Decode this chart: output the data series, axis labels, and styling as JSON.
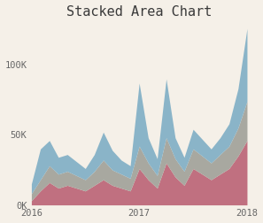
{
  "title": "Stacked Area Chart",
  "background_color": "#f5f0e8",
  "title_fontsize": 11,
  "title_font": "monospace",
  "axis_font": "monospace",
  "tick_fontsize": 7.5,
  "colors": {
    "pink": "#c07080",
    "gray": "#a8a8a0",
    "blue": "#8ab4c8"
  },
  "x_labels": [
    "2016",
    "2017",
    "2018"
  ],
  "y_labels": [
    "0K",
    "50K",
    "100K"
  ],
  "ylim": [
    0,
    130000
  ],
  "months": [
    0,
    1,
    2,
    3,
    4,
    5,
    6,
    7,
    8,
    9,
    10,
    11,
    12,
    13,
    14,
    15,
    16,
    17,
    18,
    19,
    20,
    21,
    22,
    23,
    24
  ],
  "pink_values": [
    3000,
    10000,
    16000,
    12000,
    14000,
    12000,
    10000,
    14000,
    18000,
    14000,
    12000,
    10000,
    26000,
    18000,
    12000,
    30000,
    20000,
    14000,
    26000,
    22000,
    18000,
    22000,
    26000,
    35000,
    46000
  ],
  "gray_values": [
    5000,
    8000,
    12000,
    10000,
    10000,
    9000,
    8000,
    10000,
    14000,
    11000,
    10000,
    9000,
    16000,
    12000,
    9000,
    18000,
    13000,
    10000,
    14000,
    13000,
    12000,
    14000,
    16000,
    20000,
    28000
  ],
  "blue_values": [
    7000,
    22000,
    18000,
    12000,
    12000,
    10000,
    8000,
    12000,
    20000,
    14000,
    10000,
    9000,
    45000,
    18000,
    12000,
    42000,
    15000,
    10000,
    14000,
    12000,
    10000,
    12000,
    16000,
    28000,
    52000
  ]
}
